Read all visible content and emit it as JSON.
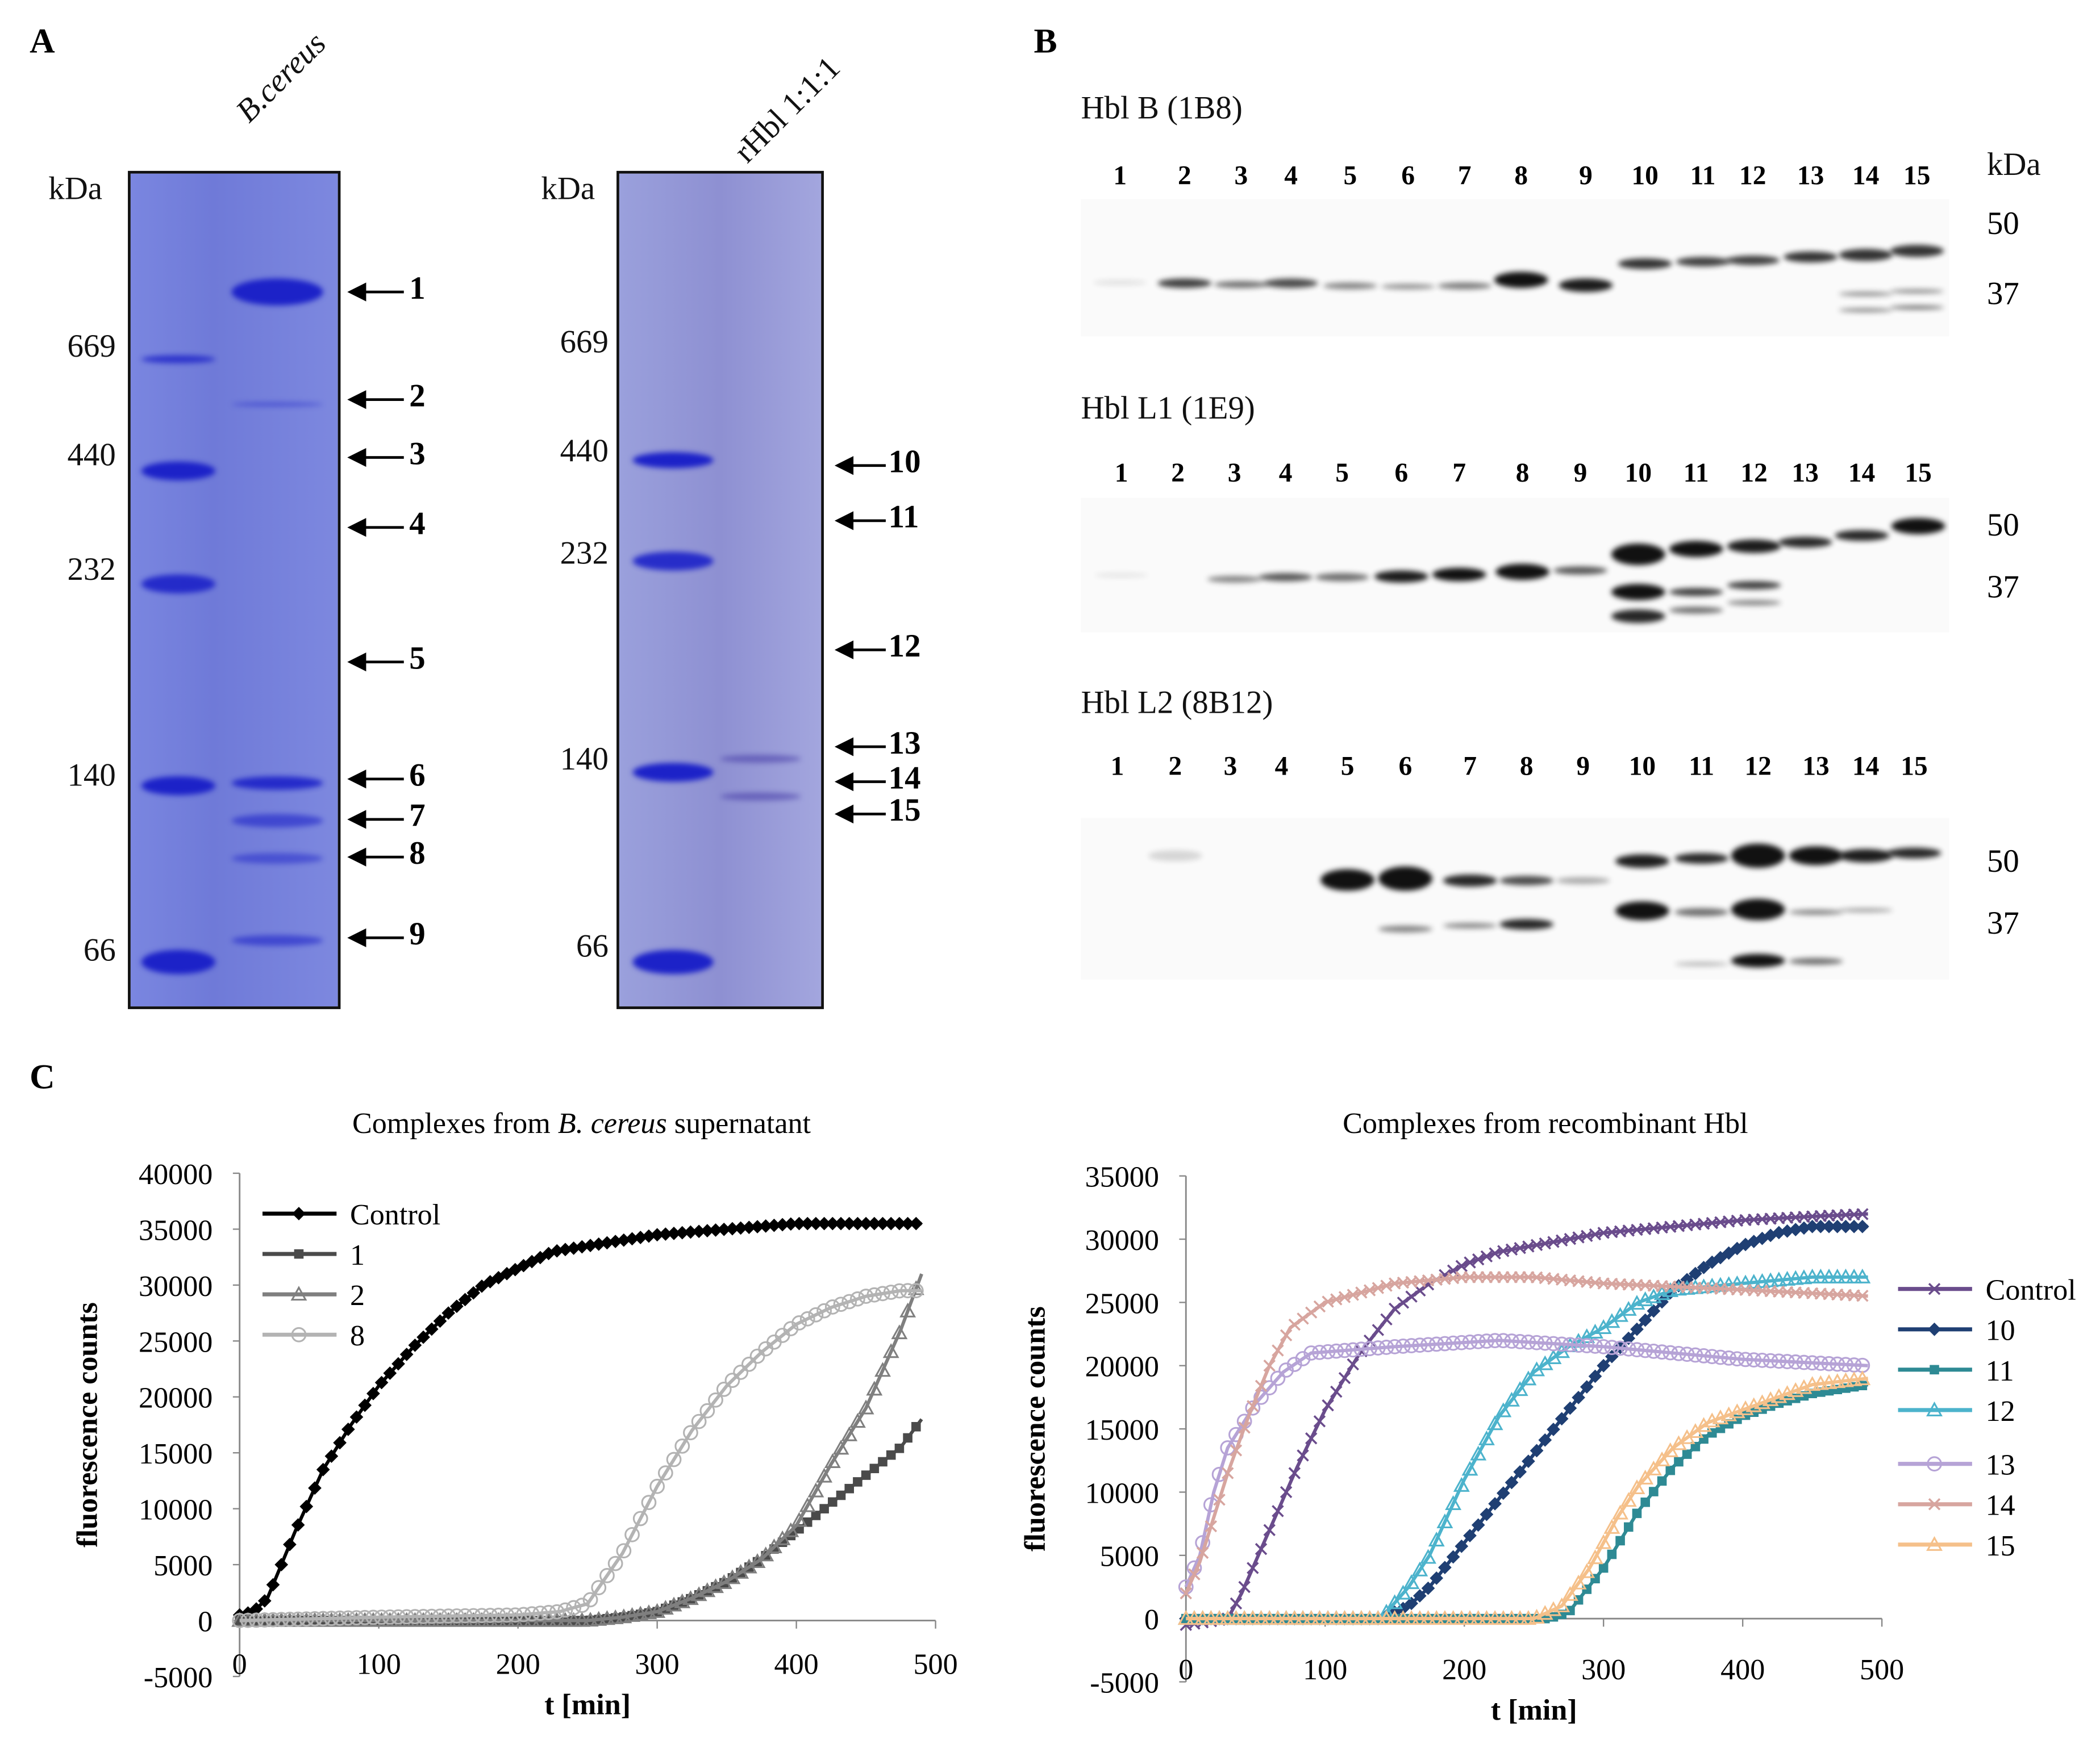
{
  "panel_a": {
    "label": "A",
    "gel_left": {
      "lane_label": "B.cereus",
      "unit": "kDa",
      "markers": [
        "669",
        "440",
        "232",
        "140",
        "66"
      ],
      "arrows": [
        "1",
        "2",
        "3",
        "4",
        "5",
        "6",
        "7",
        "8",
        "9"
      ]
    },
    "gel_right": {
      "lane_label": "rHbl 1:1:1",
      "unit": "kDa",
      "markers": [
        "669",
        "440",
        "232",
        "140",
        "66"
      ],
      "arrows": [
        "10",
        "11",
        "12",
        "13",
        "14",
        "15"
      ]
    }
  },
  "panel_b": {
    "label": "B",
    "unit": "kDa",
    "blots": [
      {
        "title": "Hbl B (1B8)",
        "lanes": [
          "1",
          "2",
          "3",
          "4",
          "5",
          "6",
          "7",
          "8",
          "9",
          "10",
          "11",
          "12",
          "13",
          "14",
          "15"
        ],
        "markers": [
          "50",
          "37"
        ]
      },
      {
        "title": "Hbl L1 (1E9)",
        "lanes": [
          "1",
          "2",
          "3",
          "4",
          "5",
          "6",
          "7",
          "8",
          "9",
          "10",
          "11",
          "12",
          "13",
          "14",
          "15"
        ],
        "markers": [
          "50",
          "37"
        ]
      },
      {
        "title": "Hbl L2 (8B12)",
        "lanes": [
          "1",
          "2",
          "3",
          "4",
          "5",
          "6",
          "7",
          "8",
          "9",
          "10",
          "11",
          "12",
          "13",
          "14",
          "15"
        ],
        "markers": [
          "50",
          "37"
        ]
      }
    ]
  },
  "panel_c": {
    "label": "C"
  },
  "chart_data": [
    {
      "type": "line",
      "title": "Complexes from B. cereus supernatant",
      "title_parts": [
        "Complexes from ",
        "B. cereus",
        " supernatant"
      ],
      "xlabel": "t [min]",
      "ylabel": "fluorescence counts",
      "xlim": [
        0,
        500
      ],
      "ylim": [
        -5000,
        40000
      ],
      "xticks": [
        0,
        100,
        200,
        300,
        400,
        500
      ],
      "yticks": [
        -5000,
        0,
        5000,
        10000,
        15000,
        20000,
        25000,
        30000,
        35000,
        40000
      ],
      "legend_position": "top-left",
      "series": [
        {
          "name": "Control",
          "color": "#000000",
          "marker": "diamond",
          "points": [
            [
              0,
              500
            ],
            [
              10,
              800
            ],
            [
              20,
              2000
            ],
            [
              40,
              8000
            ],
            [
              60,
              13500
            ],
            [
              80,
              17500
            ],
            [
              100,
              21000
            ],
            [
              125,
              24500
            ],
            [
              150,
              27500
            ],
            [
              175,
              30000
            ],
            [
              200,
              31500
            ],
            [
              225,
              33000
            ],
            [
              250,
              33500
            ],
            [
              275,
              34000
            ],
            [
              300,
              34500
            ],
            [
              350,
              35000
            ],
            [
              400,
              35500
            ],
            [
              450,
              35500
            ],
            [
              490,
              35500
            ]
          ]
        },
        {
          "name": "1",
          "color": "#4a4a4a",
          "marker": "square",
          "points": [
            [
              0,
              0
            ],
            [
              100,
              0
            ],
            [
              200,
              0
            ],
            [
              250,
              0
            ],
            [
              275,
              300
            ],
            [
              300,
              800
            ],
            [
              325,
              2000
            ],
            [
              350,
              3500
            ],
            [
              375,
              5500
            ],
            [
              400,
              8000
            ],
            [
              425,
              10500
            ],
            [
              450,
              13000
            ],
            [
              475,
              15500
            ],
            [
              490,
              18000
            ]
          ]
        },
        {
          "name": "2",
          "color": "#7f7f7f",
          "marker": "triangle",
          "points": [
            [
              0,
              0
            ],
            [
              100,
              0
            ],
            [
              200,
              0
            ],
            [
              250,
              0
            ],
            [
              275,
              300
            ],
            [
              300,
              800
            ],
            [
              325,
              2000
            ],
            [
              350,
              3500
            ],
            [
              375,
              5500
            ],
            [
              400,
              8500
            ],
            [
              425,
              14000
            ],
            [
              450,
              19000
            ],
            [
              475,
              26000
            ],
            [
              490,
              31000
            ]
          ]
        },
        {
          "name": "8",
          "color": "#b3b3b3",
          "marker": "circle",
          "points": [
            [
              0,
              0
            ],
            [
              100,
              300
            ],
            [
              200,
              500
            ],
            [
              230,
              800
            ],
            [
              250,
              1500
            ],
            [
              275,
              6000
            ],
            [
              300,
              12000
            ],
            [
              325,
              17000
            ],
            [
              350,
              21000
            ],
            [
              375,
              24000
            ],
            [
              400,
              26500
            ],
            [
              425,
              28000
            ],
            [
              450,
              29000
            ],
            [
              475,
              29500
            ],
            [
              490,
              29500
            ]
          ]
        }
      ]
    },
    {
      "type": "line",
      "title": "Complexes from recombinant Hbl",
      "xlabel": "t [min]",
      "ylabel": "fluorescence counts",
      "xlim": [
        0,
        500
      ],
      "ylim": [
        -5000,
        35000
      ],
      "xticks": [
        0,
        100,
        200,
        300,
        400,
        500
      ],
      "yticks": [
        -5000,
        0,
        5000,
        10000,
        15000,
        20000,
        25000,
        30000,
        35000
      ],
      "legend_position": "right",
      "series": [
        {
          "name": "Control",
          "color": "#6a4c8c",
          "marker": "cross",
          "points": [
            [
              0,
              -500
            ],
            [
              30,
              0
            ],
            [
              40,
              2000
            ],
            [
              60,
              7000
            ],
            [
              80,
              12000
            ],
            [
              100,
              16500
            ],
            [
              125,
              21000
            ],
            [
              150,
              24500
            ],
            [
              175,
              26500
            ],
            [
              200,
              28000
            ],
            [
              225,
              29000
            ],
            [
              250,
              29500
            ],
            [
              300,
              30500
            ],
            [
              350,
              31000
            ],
            [
              400,
              31500
            ],
            [
              450,
              31800
            ],
            [
              490,
              32000
            ]
          ]
        },
        {
          "name": "10",
          "color": "#1f3f73",
          "marker": "diamond",
          "points": [
            [
              0,
              0
            ],
            [
              140,
              0
            ],
            [
              160,
              1000
            ],
            [
              175,
              2500
            ],
            [
              200,
              6000
            ],
            [
              225,
              9500
            ],
            [
              250,
              13000
            ],
            [
              275,
              16500
            ],
            [
              300,
              20000
            ],
            [
              325,
              23000
            ],
            [
              350,
              26000
            ],
            [
              375,
              28000
            ],
            [
              400,
              29500
            ],
            [
              425,
              30500
            ],
            [
              450,
              31000
            ],
            [
              490,
              31000
            ]
          ]
        },
        {
          "name": "11",
          "color": "#2e8a94",
          "marker": "square",
          "points": [
            [
              0,
              0
            ],
            [
              260,
              0
            ],
            [
              275,
              500
            ],
            [
              300,
              4000
            ],
            [
              325,
              8500
            ],
            [
              350,
              12000
            ],
            [
              375,
              14500
            ],
            [
              400,
              16000
            ],
            [
              425,
              17000
            ],
            [
              450,
              17800
            ],
            [
              490,
              18500
            ]
          ]
        },
        {
          "name": "12",
          "color": "#4cb3cc",
          "marker": "triangle",
          "points": [
            [
              0,
              0
            ],
            [
              140,
              0
            ],
            [
              160,
              2500
            ],
            [
              175,
              5000
            ],
            [
              200,
              11000
            ],
            [
              225,
              16000
            ],
            [
              250,
              19500
            ],
            [
              275,
              21500
            ],
            [
              300,
              23000
            ],
            [
              325,
              25000
            ],
            [
              350,
              26000
            ],
            [
              400,
              26500
            ],
            [
              450,
              27000
            ],
            [
              490,
              27000
            ]
          ]
        },
        {
          "name": "13",
          "color": "#b6a3d6",
          "marker": "circle",
          "points": [
            [
              0,
              2500
            ],
            [
              10,
              5000
            ],
            [
              20,
              10000
            ],
            [
              30,
              13500
            ],
            [
              50,
              17000
            ],
            [
              70,
              19500
            ],
            [
              90,
              21000
            ],
            [
              150,
              21500
            ],
            [
              225,
              22000
            ],
            [
              300,
              21500
            ],
            [
              400,
              20500
            ],
            [
              490,
              20000
            ]
          ]
        },
        {
          "name": "14",
          "color": "#d7a59f",
          "marker": "cross",
          "points": [
            [
              0,
              2000
            ],
            [
              10,
              4500
            ],
            [
              20,
              8000
            ],
            [
              30,
              11500
            ],
            [
              45,
              16000
            ],
            [
              60,
              20000
            ],
            [
              75,
              23000
            ],
            [
              100,
              25000
            ],
            [
              150,
              26500
            ],
            [
              200,
              27000
            ],
            [
              250,
              27000
            ],
            [
              300,
              26500
            ],
            [
              400,
              26000
            ],
            [
              490,
              25500
            ]
          ]
        },
        {
          "name": "15",
          "color": "#f5c08a",
          "marker": "triangle",
          "points": [
            [
              0,
              0
            ],
            [
              250,
              0
            ],
            [
              270,
              1000
            ],
            [
              290,
              4000
            ],
            [
              310,
              8000
            ],
            [
              325,
              10500
            ],
            [
              350,
              13500
            ],
            [
              375,
              15500
            ],
            [
              400,
              16500
            ],
            [
              425,
              17500
            ],
            [
              450,
              18500
            ],
            [
              490,
              19000
            ]
          ]
        }
      ]
    }
  ]
}
